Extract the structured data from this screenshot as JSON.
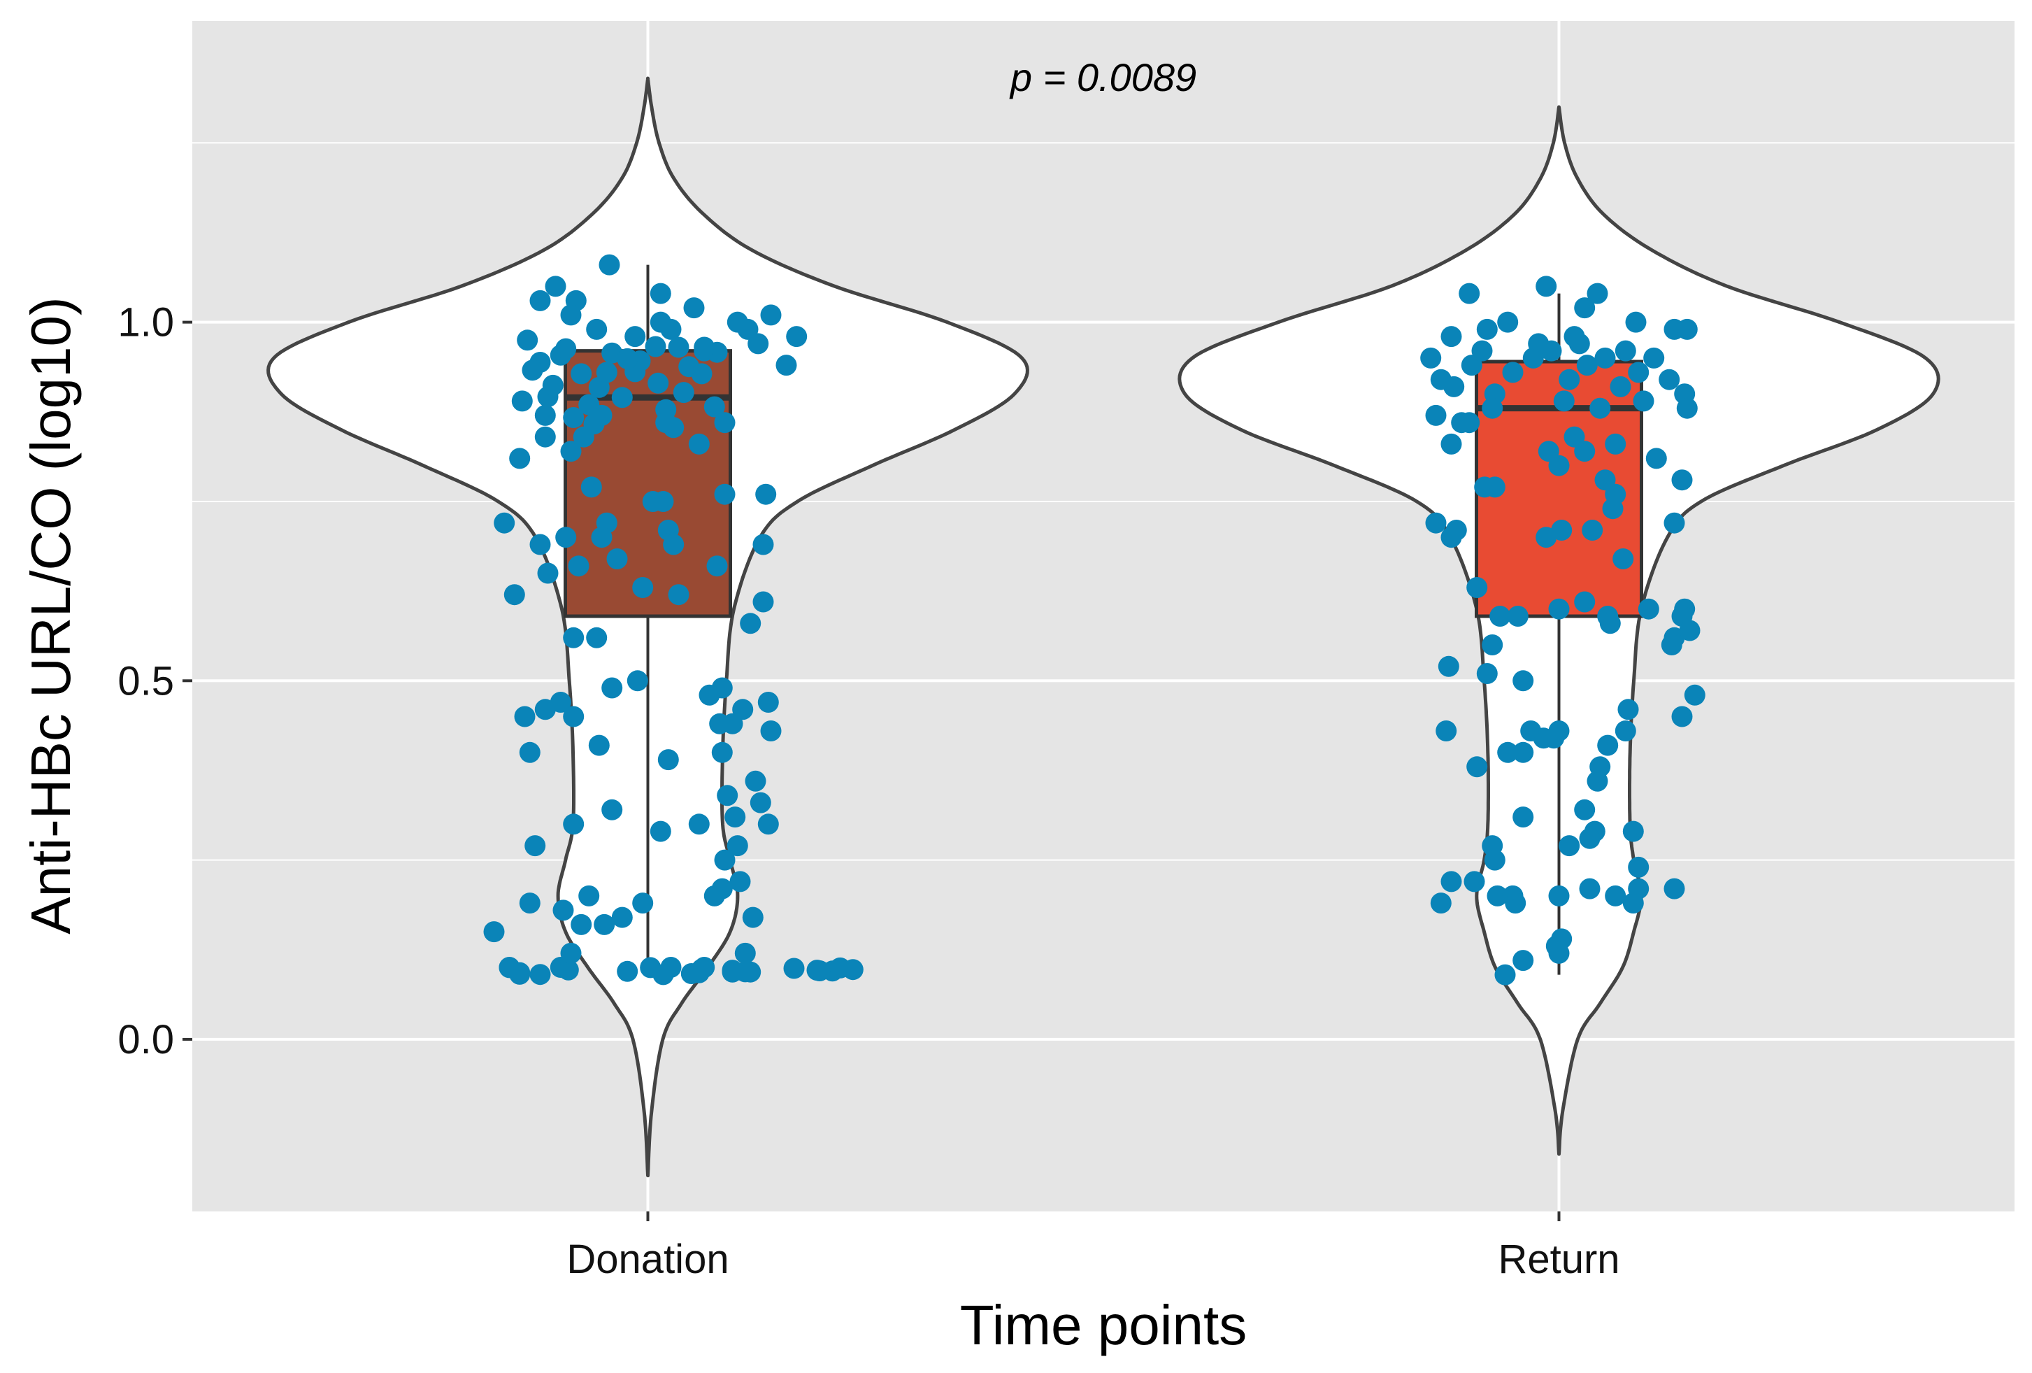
{
  "chart_data": {
    "type": "violin",
    "title": "",
    "xlabel": "Time points",
    "ylabel": "Anti-HBc URL/CO (log10)",
    "annotation": "p = 0.0089",
    "ylim": [
      -0.24,
      1.42
    ],
    "yticks": [
      0.0,
      0.5,
      1.0
    ],
    "ytick_labels": [
      "0.0",
      "0.5",
      "1.0"
    ],
    "grid": true,
    "legend": "none",
    "colors": {
      "panel_background": "#e5e5e5",
      "grid": "#ffffff",
      "violin_fill": "#ffffff",
      "violin_outline": "#444444",
      "points": "#0a84b8",
      "box_outline": "#333333"
    },
    "categories": [
      "Donation",
      "Return"
    ],
    "groups": [
      {
        "name": "Donation",
        "box_color": "#994a33",
        "box": {
          "q1": 0.59,
          "median": 0.895,
          "q3": 0.96,
          "whisker_low": 0.09,
          "whisker_high": 1.08
        },
        "violin": {
          "density_y": [
            -0.19,
            -0.1,
            0.0,
            0.05,
            0.1,
            0.15,
            0.2,
            0.25,
            0.3,
            0.4,
            0.5,
            0.6,
            0.7,
            0.75,
            0.8,
            0.85,
            0.9,
            0.95,
            1.0,
            1.05,
            1.1,
            1.15,
            1.2,
            1.25,
            1.3,
            1.34
          ],
          "density_w": [
            0.0,
            0.01,
            0.04,
            0.09,
            0.16,
            0.22,
            0.24,
            0.22,
            0.2,
            0.2,
            0.21,
            0.23,
            0.3,
            0.4,
            0.6,
            0.82,
            0.98,
            1.0,
            0.8,
            0.5,
            0.28,
            0.15,
            0.07,
            0.03,
            0.01,
            0.0
          ]
        },
        "points": [
          [
            0.72,
            0.0952
          ],
          [
            -0.54,
            0.1004
          ],
          [
            -0.34,
            0.1004
          ],
          [
            0.22,
            0.1004
          ],
          [
            0.09,
            0.1004
          ],
          [
            0.75,
            0.0995
          ],
          [
            0.57,
            0.0989
          ],
          [
            0.21,
            0.0978
          ],
          [
            0.8,
            0.0973
          ],
          [
            -0.31,
            0.0967
          ],
          [
            0.33,
            0.0964
          ],
          [
            0.66,
            0.0964
          ],
          [
            0.67,
            0.0955
          ],
          [
            -0.08,
            0.0947
          ],
          [
            0.38,
            0.0941
          ],
          [
            0.4,
            0.0939
          ],
          [
            0.33,
            0.0938
          ],
          [
            -0.5,
            0.093
          ],
          [
            0.2,
            0.0928
          ],
          [
            0.17,
            0.0916
          ],
          [
            -0.5,
            0.0907
          ],
          [
            -0.42,
            0.0904
          ],
          [
            0.06,
            0.0902
          ],
          [
            -0.49,
            0.89
          ],
          [
            -0.39,
            0.896
          ],
          [
            -0.26,
            0.928
          ],
          [
            -0.03,
            0.946
          ],
          [
            -0.14,
            0.957
          ],
          [
            0.03,
            0.966
          ],
          [
            0.16,
            0.938
          ],
          [
            -0.19,
            0.909
          ],
          [
            -0.42,
            0.944
          ],
          [
            0.07,
            0.878
          ],
          [
            0.26,
            0.882
          ],
          [
            -0.34,
            0.954
          ],
          [
            -0.21,
            0.858
          ],
          [
            -0.05,
            0.931
          ],
          [
            0.12,
            0.965
          ],
          [
            -0.47,
            0.975
          ],
          [
            -0.37,
            0.912
          ],
          [
            -0.1,
            0.895
          ],
          [
            0.1,
            0.853
          ],
          [
            0.22,
            0.96
          ],
          [
            -0.29,
            0.867
          ],
          [
            0.04,
            0.915
          ],
          [
            -0.45,
            0.933
          ],
          [
            -0.32,
            0.963
          ],
          [
            -0.08,
            0.949
          ],
          [
            0.21,
            0.928
          ],
          [
            -0.23,
            0.885
          ],
          [
            0.14,
            0.902
          ],
          [
            -0.4,
            0.87
          ],
          [
            -0.16,
            0.93
          ],
          [
            0.27,
            0.958
          ],
          [
            -0.36,
            1.05
          ],
          [
            -0.28,
            1.03
          ],
          [
            -0.2,
            0.99
          ],
          [
            0.05,
            1.0
          ],
          [
            0.18,
            1.02
          ],
          [
            0.35,
            1.0
          ],
          [
            0.43,
            0.97
          ],
          [
            0.58,
            0.98
          ],
          [
            0.48,
            1.01
          ],
          [
            -0.42,
            1.03
          ],
          [
            -0.15,
            1.08
          ],
          [
            0.05,
            1.04
          ],
          [
            -0.05,
            0.98
          ],
          [
            0.09,
            0.99
          ],
          [
            0.54,
            0.94
          ],
          [
            0.22,
            0.965
          ],
          [
            0.39,
            0.99
          ],
          [
            -0.3,
            1.01
          ],
          [
            -0.5,
            0.81
          ],
          [
            -0.4,
            0.84
          ],
          [
            -0.3,
            0.82
          ],
          [
            -0.18,
            0.87
          ],
          [
            0.07,
            0.86
          ],
          [
            0.2,
            0.83
          ],
          [
            0.3,
            0.86
          ],
          [
            -0.25,
            0.84
          ],
          [
            -0.56,
            0.72
          ],
          [
            -0.42,
            0.69
          ],
          [
            -0.32,
            0.7
          ],
          [
            -0.22,
            0.77
          ],
          [
            -0.16,
            0.72
          ],
          [
            -0.18,
            0.7
          ],
          [
            -0.12,
            0.67
          ],
          [
            0.02,
            0.75
          ],
          [
            0.06,
            0.75
          ],
          [
            0.08,
            0.71
          ],
          [
            0.1,
            0.69
          ],
          [
            -0.02,
            0.63
          ],
          [
            0.12,
            0.62
          ],
          [
            -0.27,
            0.66
          ],
          [
            -0.39,
            0.65
          ],
          [
            0.27,
            0.66
          ],
          [
            0.3,
            0.76
          ],
          [
            0.45,
            0.69
          ],
          [
            0.46,
            0.76
          ],
          [
            -0.52,
            0.62
          ],
          [
            0.45,
            0.61
          ],
          [
            0.4,
            0.58
          ],
          [
            -0.29,
            0.56
          ],
          [
            -0.2,
            0.56
          ],
          [
            -0.14,
            0.49
          ],
          [
            -0.04,
            0.5
          ],
          [
            0.29,
            0.49
          ],
          [
            0.24,
            0.48
          ],
          [
            -0.48,
            0.45
          ],
          [
            -0.4,
            0.46
          ],
          [
            -0.34,
            0.47
          ],
          [
            -0.29,
            0.45
          ],
          [
            0.28,
            0.44
          ],
          [
            0.33,
            0.44
          ],
          [
            0.47,
            0.47
          ],
          [
            0.48,
            0.43
          ],
          [
            0.37,
            0.46
          ],
          [
            -0.46,
            0.4
          ],
          [
            -0.19,
            0.41
          ],
          [
            0.08,
            0.39
          ],
          [
            0.29,
            0.4
          ],
          [
            0.42,
            0.36
          ],
          [
            0.44,
            0.33
          ],
          [
            0.34,
            0.31
          ],
          [
            0.31,
            0.34
          ],
          [
            -0.29,
            0.3
          ],
          [
            -0.14,
            0.32
          ],
          [
            0.05,
            0.29
          ],
          [
            0.2,
            0.3
          ],
          [
            0.35,
            0.27
          ],
          [
            0.47,
            0.3
          ],
          [
            -0.44,
            0.27
          ],
          [
            0.3,
            0.25
          ],
          [
            0.29,
            0.21
          ],
          [
            0.36,
            0.22
          ],
          [
            0.26,
            0.2
          ],
          [
            -0.46,
            0.19
          ],
          [
            -0.33,
            0.18
          ],
          [
            -0.23,
            0.2
          ],
          [
            -0.02,
            0.19
          ],
          [
            -0.1,
            0.17
          ],
          [
            -0.26,
            0.16
          ],
          [
            -0.17,
            0.16
          ],
          [
            -0.6,
            0.15
          ],
          [
            0.41,
            0.17
          ],
          [
            -0.3,
            0.12
          ],
          [
            0.38,
            0.12
          ],
          [
            -0.54,
            0.1
          ],
          [
            0.01,
            0.1
          ]
        ]
      },
      {
        "name": "Return",
        "box_color": "#e84b33",
        "box": {
          "q1": 0.59,
          "median": 0.88,
          "q3": 0.945,
          "whisker_low": 0.09,
          "whisker_high": 1.04
        },
        "violin": {
          "density_y": [
            -0.16,
            -0.1,
            0.0,
            0.05,
            0.1,
            0.15,
            0.2,
            0.25,
            0.3,
            0.4,
            0.5,
            0.6,
            0.7,
            0.75,
            0.8,
            0.85,
            0.9,
            0.95,
            1.0,
            1.05,
            1.1,
            1.15,
            1.2,
            1.25,
            1.3
          ],
          "density_w": [
            0.0,
            0.01,
            0.05,
            0.11,
            0.17,
            0.2,
            0.22,
            0.2,
            0.19,
            0.19,
            0.2,
            0.22,
            0.29,
            0.38,
            0.6,
            0.85,
            1.0,
            0.98,
            0.75,
            0.45,
            0.25,
            0.12,
            0.05,
            0.015,
            0.0
          ]
        },
        "points": [
          [
            -0.35,
            1.04
          ],
          [
            -0.2,
            1.0
          ],
          [
            -0.05,
            1.05
          ],
          [
            0.1,
            1.02
          ],
          [
            0.15,
            1.04
          ],
          [
            0.3,
            1.0
          ],
          [
            -0.42,
            0.98
          ],
          [
            0.45,
            0.99
          ],
          [
            0.5,
            0.99
          ],
          [
            -0.28,
            0.99
          ],
          [
            0.06,
            0.98
          ],
          [
            -0.5,
            0.95
          ],
          [
            -0.46,
            0.92
          ],
          [
            -0.41,
            0.91
          ],
          [
            -0.34,
            0.94
          ],
          [
            -0.3,
            0.96
          ],
          [
            -0.25,
            0.9
          ],
          [
            -0.18,
            0.93
          ],
          [
            -0.1,
            0.95
          ],
          [
            -0.03,
            0.96
          ],
          [
            0.04,
            0.92
          ],
          [
            0.11,
            0.94
          ],
          [
            0.18,
            0.95
          ],
          [
            0.24,
            0.91
          ],
          [
            0.31,
            0.93
          ],
          [
            0.37,
            0.95
          ],
          [
            0.43,
            0.92
          ],
          [
            0.49,
            0.9
          ],
          [
            -0.48,
            0.87
          ],
          [
            -0.38,
            0.86
          ],
          [
            -0.26,
            0.88
          ],
          [
            0.02,
            0.89
          ],
          [
            0.16,
            0.88
          ],
          [
            0.33,
            0.89
          ],
          [
            0.5,
            0.88
          ],
          [
            0.26,
            0.96
          ],
          [
            -0.08,
            0.97
          ],
          [
            0.08,
            0.97
          ],
          [
            -0.42,
            0.83
          ],
          [
            -0.35,
            0.86
          ],
          [
            0.0,
            0.8
          ],
          [
            0.06,
            0.84
          ],
          [
            -0.04,
            0.82
          ],
          [
            0.1,
            0.82
          ],
          [
            0.22,
            0.83
          ],
          [
            0.38,
            0.81
          ],
          [
            -0.29,
            0.77
          ],
          [
            -0.25,
            0.77
          ],
          [
            0.18,
            0.78
          ],
          [
            0.21,
            0.74
          ],
          [
            0.22,
            0.76
          ],
          [
            -0.48,
            0.72
          ],
          [
            -0.4,
            0.71
          ],
          [
            -0.42,
            0.7
          ],
          [
            -0.05,
            0.7
          ],
          [
            0.01,
            0.71
          ],
          [
            0.45,
            0.72
          ],
          [
            0.48,
            0.78
          ],
          [
            0.13,
            0.71
          ],
          [
            0.25,
            0.67
          ],
          [
            -0.32,
            0.63
          ],
          [
            -0.23,
            0.59
          ],
          [
            -0.16,
            0.59
          ],
          [
            0.0,
            0.6
          ],
          [
            0.1,
            0.61
          ],
          [
            0.35,
            0.6
          ],
          [
            0.19,
            0.59
          ],
          [
            0.2,
            0.58
          ],
          [
            0.49,
            0.6
          ],
          [
            0.48,
            0.59
          ],
          [
            0.45,
            0.56
          ],
          [
            0.51,
            0.57
          ],
          [
            -0.26,
            0.55
          ],
          [
            -0.43,
            0.52
          ],
          [
            -0.28,
            0.51
          ],
          [
            -0.14,
            0.5
          ],
          [
            0.44,
            0.55
          ],
          [
            0.53,
            0.48
          ],
          [
            0.27,
            0.46
          ],
          [
            0.48,
            0.45
          ],
          [
            -0.44,
            0.43
          ],
          [
            0.26,
            0.43
          ],
          [
            0.0,
            0.43
          ],
          [
            -0.11,
            0.43
          ],
          [
            -0.06,
            0.42
          ],
          [
            -0.14,
            0.4
          ],
          [
            -0.2,
            0.4
          ],
          [
            -0.02,
            0.42
          ],
          [
            0.19,
            0.41
          ],
          [
            0.15,
            0.36
          ],
          [
            0.16,
            0.38
          ],
          [
            -0.32,
            0.38
          ],
          [
            -0.14,
            0.31
          ],
          [
            0.1,
            0.32
          ],
          [
            0.14,
            0.29
          ],
          [
            0.12,
            0.28
          ],
          [
            0.29,
            0.29
          ],
          [
            -0.26,
            0.27
          ],
          [
            0.04,
            0.27
          ],
          [
            -0.25,
            0.25
          ],
          [
            0.31,
            0.24
          ],
          [
            -0.42,
            0.22
          ],
          [
            -0.46,
            0.19
          ],
          [
            -0.33,
            0.22
          ],
          [
            -0.24,
            0.2
          ],
          [
            -0.18,
            0.2
          ],
          [
            0.0,
            0.2
          ],
          [
            0.12,
            0.21
          ],
          [
            0.22,
            0.2
          ],
          [
            0.31,
            0.21
          ],
          [
            0.45,
            0.21
          ],
          [
            0.29,
            0.19
          ],
          [
            -0.17,
            0.19
          ],
          [
            -0.01,
            0.13
          ],
          [
            0.01,
            0.14
          ],
          [
            0.0,
            0.12
          ],
          [
            -0.14,
            0.11
          ],
          [
            -0.21,
            0.09
          ]
        ]
      }
    ]
  }
}
